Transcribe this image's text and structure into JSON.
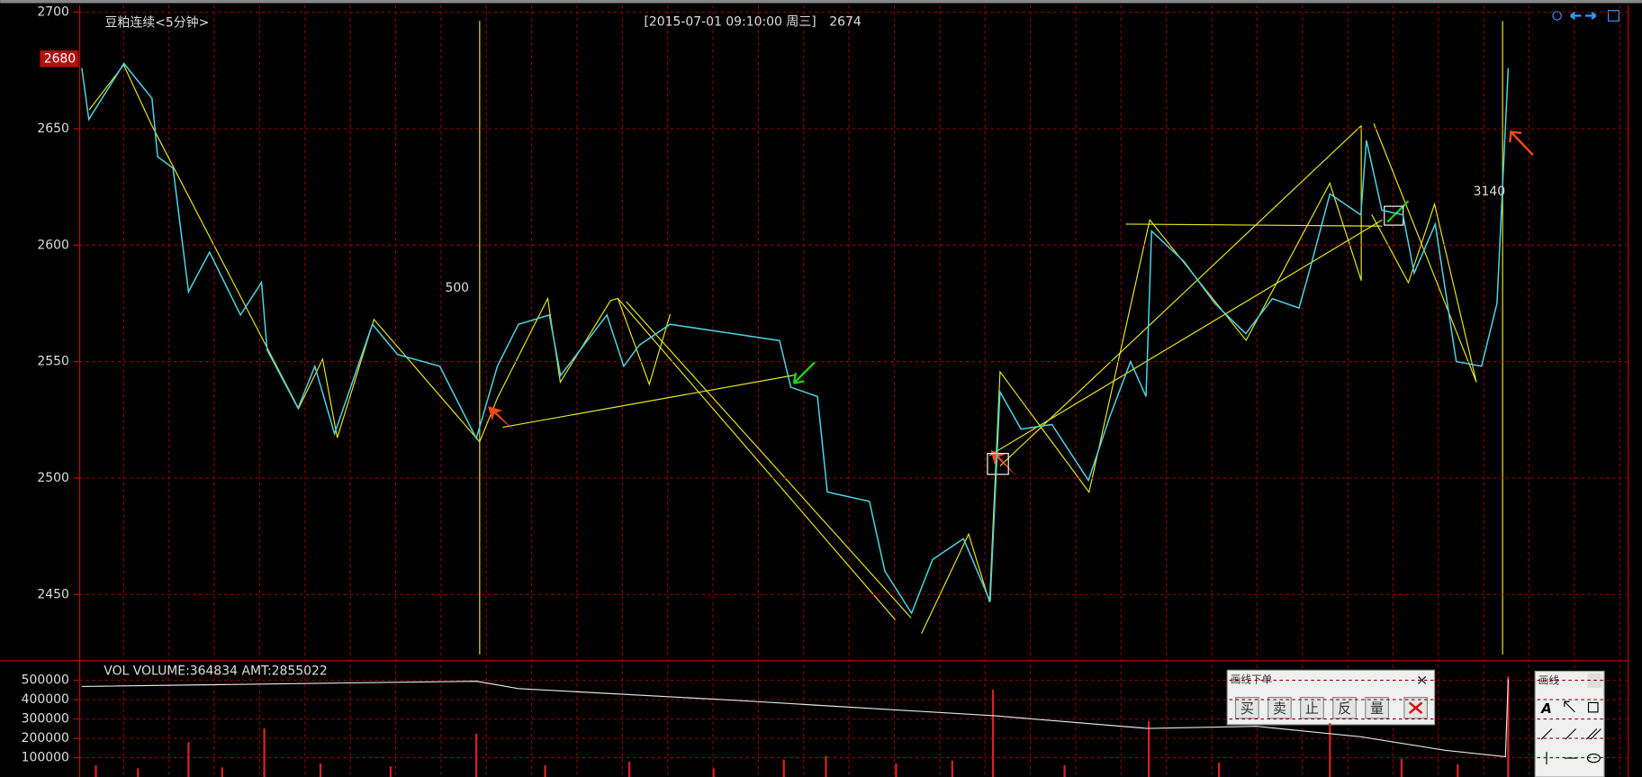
{
  "header": {
    "title": "豆粕连续<5分钟>",
    "datetime": "[2015-07-01  09:10:00 周三]",
    "current": "2674"
  },
  "chart_data": [
    {
      "type": "line",
      "color": "#4dd2e0",
      "x": [
        0,
        0.5,
        3.0,
        5.0,
        5.4,
        6.5,
        7.6,
        9.1,
        11.3,
        12.8,
        13.2,
        15.4,
        16.6,
        18.0,
        20.7,
        22.5,
        25.5,
        28.1,
        29.6,
        31.1,
        33.3,
        34.1,
        37.4,
        38.6,
        39.7,
        41.9,
        46.4,
        49.7,
        50.5,
        52.4,
        53.1,
        56.1,
        57.2,
        59.1,
        60.6,
        62.8,
        64.7,
        65.4,
        66.9,
        69.1,
        71.7,
        73.2,
        74.7,
        75.8,
        76.2,
        78.5,
        80.7,
        82.9,
        84.8,
        86.7,
        87.4,
        88.9,
        91.1,
        91.5,
        92.6,
        94.1,
        94.9,
        96.4,
        97.9,
        99.7,
        100.8,
        101.6
      ],
      "values": [
        2676,
        2654,
        2678,
        2663,
        2638,
        2633,
        2580,
        2597,
        2570,
        2584,
        2555,
        2530,
        2548,
        2519,
        2566,
        2553,
        2548,
        2517,
        2548,
        2566,
        2570,
        2544,
        2570,
        2548,
        2557,
        2566,
        2562,
        2559,
        2539,
        2535,
        2494,
        2490,
        2460,
        2442,
        2465,
        2474,
        2447,
        2537,
        2521,
        2523,
        2499,
        2526,
        2550,
        2535,
        2606,
        2593,
        2575,
        2562,
        2577,
        2573,
        2588,
        2622,
        2613,
        2645,
        2615,
        2613,
        2588,
        2609,
        2550,
        2548,
        2575,
        2676
      ],
      "xlim": [
        0,
        110
      ],
      "ylim": [
        2422,
        2703
      ],
      "yticks": [
        2700,
        2650,
        2600,
        2550,
        2500,
        2450
      ],
      "last_price": 2680,
      "annotations": [
        "500",
        "3140"
      ]
    },
    {
      "type": "volume",
      "label": "VOL  VOLUME:364834 AMT:2855022",
      "xlim": [
        0,
        110
      ],
      "ylim": [
        0,
        590000
      ],
      "yticks": [
        500000,
        400000,
        300000,
        200000,
        100000
      ],
      "line": {
        "color": "#e6e6e6",
        "x": [
          0,
          28.1,
          31.1,
          46.4,
          65.1,
          75.9,
          83.7,
          91.1,
          97.1,
          101.4,
          101.6
        ],
        "values": [
          468000,
          495000,
          457000,
          397000,
          316000,
          251000,
          262000,
          208000,
          138000,
          105000,
          505000
        ]
      },
      "bars": {
        "color": "#d42020",
        "x": [
          1,
          4,
          7.6,
          10,
          13,
          17,
          22,
          28.1,
          33,
          39,
          45,
          50,
          53,
          58,
          62,
          64.9,
          70,
          76,
          81,
          88.9,
          94,
          98,
          101.6
        ],
        "values": [
          60000,
          45000,
          181000,
          50000,
          251000,
          70000,
          55000,
          224000,
          60000,
          80000,
          45000,
          90000,
          110000,
          70000,
          85000,
          451000,
          60000,
          289000,
          75000,
          278000,
          95000,
          65000,
          520000
        ]
      }
    }
  ],
  "order_panel": {
    "title": "画线下单",
    "close": "×",
    "buttons": [
      "买",
      "卖",
      "止",
      "反",
      "量"
    ]
  },
  "draw_panel": {
    "title": "画线",
    "tool": "A"
  }
}
